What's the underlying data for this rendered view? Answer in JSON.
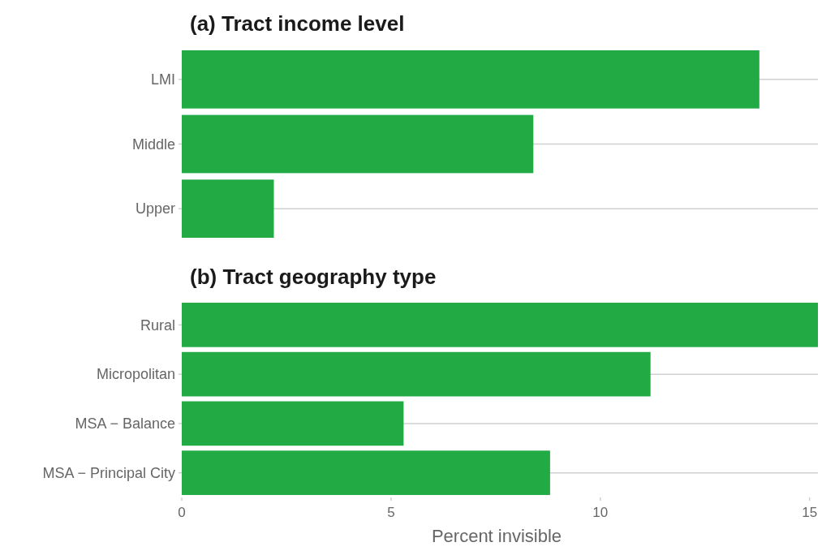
{
  "chart_data": [
    {
      "type": "bar",
      "title": "(a) Tract income level",
      "orientation": "horizontal",
      "categories": [
        "LMI",
        "Middle",
        "Upper"
      ],
      "values": [
        13.8,
        8.4,
        2.2
      ],
      "color": "#22aa44",
      "xlim": [
        0,
        15.2
      ],
      "xticks": [
        0,
        5,
        10,
        15
      ],
      "tick_labels": "y",
      "grid": "y"
    },
    {
      "type": "bar",
      "title": "(b) Tract geography type",
      "orientation": "horizontal",
      "categories": [
        "Rural",
        "Micropolitan",
        "MSA − Balance",
        "MSA − Principal City"
      ],
      "values": [
        15.2,
        11.2,
        5.3,
        8.8
      ],
      "color": "#22aa44",
      "xlim": [
        0,
        15.2
      ],
      "xticks": [
        0,
        5,
        10,
        15
      ],
      "xlabel": "Percent invisible",
      "grid": "y"
    }
  ]
}
